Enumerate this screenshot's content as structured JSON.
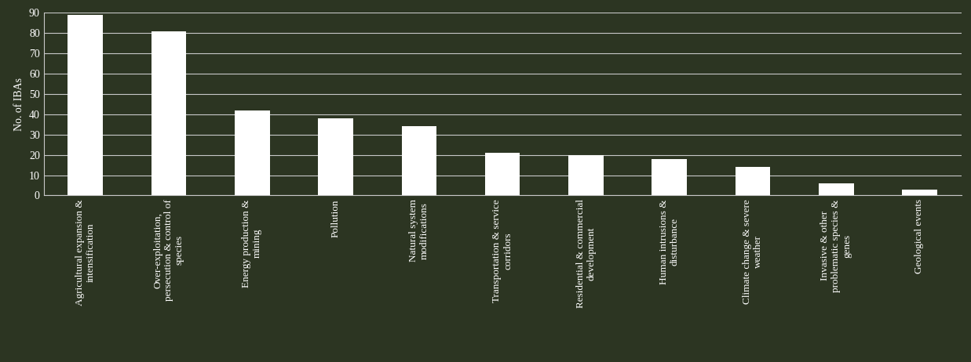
{
  "chart_data": {
    "type": "bar",
    "y_label": "No. of IBAs",
    "categories": [
      "Agricultural expansion & intensification",
      "Over-exploitation, persecution & control of species",
      "Energy production & mining",
      "Pollution",
      "Natural system modifications",
      "Transportation & service corridors",
      "Residential & commercial development",
      "Human intrusions & disturbance",
      "Climate change & severe weather",
      "Invasive & other problematic species & genes",
      "Geological events"
    ],
    "values": [
      89,
      81,
      42,
      38,
      34,
      21,
      20,
      18,
      14,
      6,
      3
    ],
    "color": "#ffffff",
    "ylim": [
      0,
      90
    ],
    "yticks": [
      0,
      10,
      20,
      30,
      40,
      50,
      60,
      70,
      80,
      90
    ],
    "grid": true
  }
}
